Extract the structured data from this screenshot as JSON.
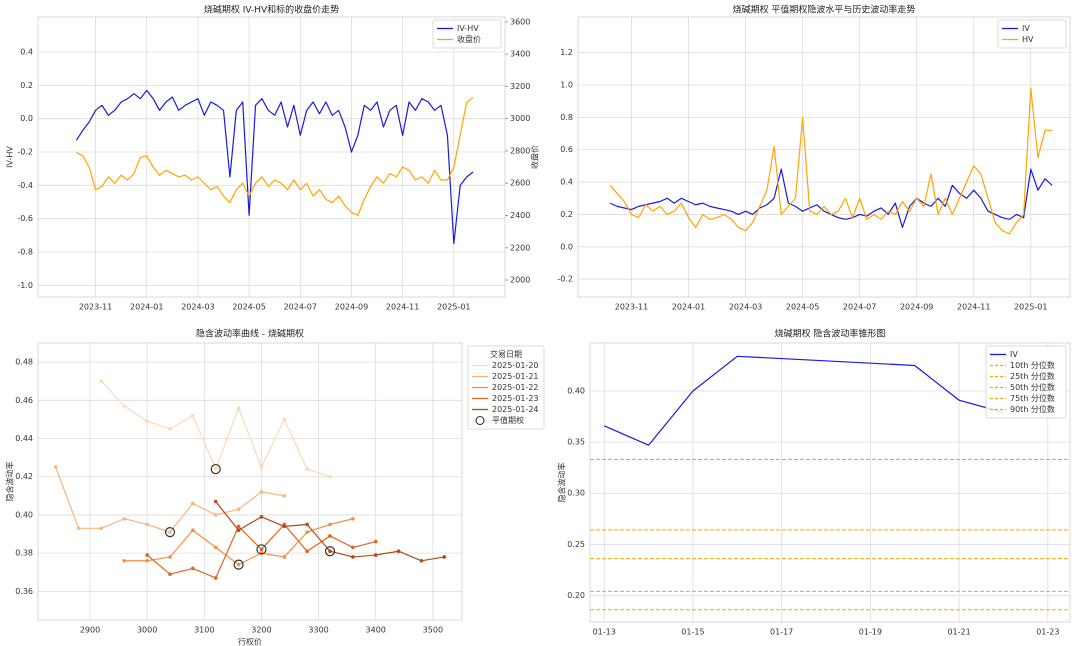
{
  "chart_data": [
    {
      "type": "line",
      "title": "烧碱期权 IV-HV和标的收盘价走势",
      "ylabel": "IV-HV",
      "y2label": "收盘价",
      "ylabel_color": "#1f77b4",
      "y2label_color": "#e41a1c",
      "legend": "upper right",
      "grid": true,
      "categories": [
        null,
        null,
        null,
        "2023-11",
        null,
        null,
        null,
        null,
        null,
        null,
        null,
        "2024-01",
        null,
        null,
        null,
        null,
        null,
        null,
        null,
        "2024-03",
        null,
        null,
        null,
        null,
        null,
        null,
        null,
        "2024-05",
        null,
        null,
        null,
        null,
        null,
        null,
        null,
        "2024-07",
        null,
        null,
        null,
        null,
        null,
        null,
        null,
        "2024-09",
        null,
        null,
        null,
        null,
        null,
        null,
        null,
        "2024-11",
        null,
        null,
        null,
        null,
        null,
        null,
        null,
        "2025-01",
        null,
        null,
        null
      ],
      "ylim": [
        -1.07,
        0.61
      ],
      "yticks": [
        {
          "value": -1.0,
          "label": "-1.0"
        },
        -0.8,
        -0.6,
        -0.4,
        -0.2,
        {
          "value": 0,
          "label": "0.0"
        },
        0.2,
        0.4
      ],
      "y2lim": [
        1895,
        3630
      ],
      "y2ticks": [
        2000,
        2200,
        2400,
        2600,
        2800,
        3000,
        3200,
        3400,
        3600
      ],
      "series": [
        {
          "name": "IV-HV",
          "color": "#1a1adf",
          "values": [
            -0.13,
            -0.07,
            -0.02,
            0.05,
            0.08,
            0.02,
            0.05,
            0.1,
            0.12,
            0.15,
            0.12,
            0.17,
            0.12,
            0.05,
            0.1,
            0.13,
            0.05,
            0.08,
            0.1,
            0.12,
            0.02,
            0.1,
            0.08,
            0.05,
            -0.35,
            0.05,
            0.1,
            -0.58,
            0.08,
            0.12,
            0.05,
            0.02,
            0.1,
            -0.05,
            0.08,
            -0.1,
            0.05,
            0.1,
            0.03,
            0.1,
            0.02,
            0.05,
            -0.05,
            -0.2,
            -0.1,
            0.08,
            0.05,
            0.1,
            -0.05,
            0.05,
            0.08,
            -0.1,
            0.1,
            0.05,
            0.12,
            0.1,
            0.05,
            0.08,
            -0.1,
            -0.75,
            -0.4,
            -0.35,
            -0.32
          ]
        },
        {
          "name": "收盘价",
          "color": "#ffa500",
          "axis": "y2",
          "values": [
            2790,
            2770,
            2700,
            2560,
            2580,
            2640,
            2600,
            2650,
            2620,
            2660,
            2760,
            2770,
            2700,
            2650,
            2680,
            2660,
            2640,
            2650,
            2620,
            2640,
            2600,
            2560,
            2580,
            2520,
            2480,
            2560,
            2600,
            2520,
            2600,
            2640,
            2580,
            2620,
            2600,
            2560,
            2620,
            2560,
            2600,
            2520,
            2560,
            2500,
            2480,
            2520,
            2460,
            2420,
            2400,
            2500,
            2580,
            2640,
            2600,
            2660,
            2640,
            2700,
            2680,
            2620,
            2640,
            2600,
            2680,
            2620,
            2620,
            2700,
            2900,
            3100,
            3130
          ]
        }
      ]
    },
    {
      "type": "line",
      "title": "烧碱期权 平值期权隐波水平与历史波动率走势",
      "legend": "upper right",
      "grid": true,
      "categories": [
        null,
        null,
        null,
        "2023-11",
        null,
        null,
        null,
        null,
        null,
        null,
        null,
        "2024-01",
        null,
        null,
        null,
        null,
        null,
        null,
        null,
        "2024-03",
        null,
        null,
        null,
        null,
        null,
        null,
        null,
        "2024-05",
        null,
        null,
        null,
        null,
        null,
        null,
        null,
        "2024-07",
        null,
        null,
        null,
        null,
        null,
        null,
        null,
        "2024-09",
        null,
        null,
        null,
        null,
        null,
        null,
        null,
        "2024-11",
        null,
        null,
        null,
        null,
        null,
        null,
        null,
        "2025-01",
        null,
        null,
        null
      ],
      "ylim": [
        -0.31,
        1.42
      ],
      "yticks": [
        -0.2,
        {
          "value": 0,
          "label": "0.0"
        },
        0.2,
        0.4,
        0.6,
        0.8,
        {
          "value": 1,
          "label": "1.0"
        },
        1.2
      ],
      "series": [
        {
          "name": "IV",
          "color": "#1a1adf",
          "values": [
            0.27,
            0.25,
            0.24,
            0.23,
            0.25,
            0.26,
            0.27,
            0.28,
            0.3,
            0.27,
            0.3,
            0.28,
            0.26,
            0.27,
            0.25,
            0.24,
            0.23,
            0.22,
            0.2,
            0.22,
            0.2,
            0.24,
            0.26,
            0.3,
            0.48,
            0.27,
            0.25,
            0.22,
            0.24,
            0.26,
            0.22,
            0.2,
            0.18,
            0.17,
            0.18,
            0.2,
            0.19,
            0.22,
            0.24,
            0.2,
            0.27,
            0.12,
            0.25,
            0.3,
            0.27,
            0.25,
            0.3,
            0.25,
            0.38,
            0.33,
            0.3,
            0.35,
            0.3,
            0.22,
            0.2,
            0.18,
            0.17,
            0.2,
            0.18,
            0.48,
            0.35,
            0.42,
            0.38
          ]
        },
        {
          "name": "HV",
          "color": "#ffa500",
          "values": [
            0.38,
            0.33,
            0.28,
            0.2,
            0.18,
            0.26,
            0.22,
            0.25,
            0.2,
            0.22,
            0.27,
            0.18,
            0.12,
            0.2,
            0.17,
            0.18,
            0.2,
            0.17,
            0.12,
            0.1,
            0.15,
            0.25,
            0.35,
            0.62,
            0.2,
            0.25,
            0.3,
            0.8,
            0.22,
            0.2,
            0.25,
            0.2,
            0.22,
            0.3,
            0.18,
            0.3,
            0.17,
            0.2,
            0.17,
            0.22,
            0.2,
            0.28,
            0.22,
            0.3,
            0.25,
            0.45,
            0.2,
            0.3,
            0.2,
            0.3,
            0.4,
            0.5,
            0.45,
            0.3,
            0.15,
            0.1,
            0.08,
            0.15,
            0.2,
            0.98,
            0.55,
            0.72,
            0.72
          ]
        }
      ]
    },
    {
      "type": "line",
      "title": "隐含波动率曲线 - 烧碱期权",
      "xlabel": "行权价",
      "ylabel": "隐含波动率",
      "legend": "outside right",
      "legend_title": "交易日期",
      "grid": true,
      "markers": true,
      "xlim": [
        2809,
        3551
      ],
      "xticks": [
        2900,
        3000,
        3100,
        3200,
        3300,
        3400,
        3500
      ],
      "ylim": [
        0.345,
        0.49
      ],
      "yticks": [
        0.36,
        0.38,
        {
          "value": 0.4,
          "label": "0.40"
        },
        0.42,
        0.44,
        0.46,
        0.48
      ],
      "series": [
        {
          "name": "2025-01-20",
          "color": "#fdd8b6",
          "x": [
            2920,
            2960,
            3000,
            3040,
            3080,
            3120,
            3160,
            3200,
            3240,
            3280,
            3320
          ],
          "values": [
            0.47,
            0.457,
            0.449,
            0.445,
            0.452,
            0.424,
            0.456,
            0.425,
            0.45,
            0.424,
            0.42
          ]
        },
        {
          "name": "2025-01-21",
          "color": "#fbb47a",
          "x": [
            2840,
            2880,
            2920,
            2960,
            3000,
            3040,
            3080,
            3120,
            3160,
            3200,
            3240
          ],
          "values": [
            0.425,
            0.393,
            0.393,
            0.398,
            0.395,
            0.391,
            0.406,
            0.4,
            0.403,
            0.412,
            0.41
          ]
        },
        {
          "name": "2025-01-22",
          "color": "#f78d45",
          "x": [
            2960,
            3000,
            3040,
            3080,
            3120,
            3160,
            3200,
            3240,
            3280,
            3320,
            3360
          ],
          "values": [
            0.376,
            0.376,
            0.378,
            0.392,
            0.383,
            0.374,
            0.38,
            0.378,
            0.391,
            0.395,
            0.398
          ]
        },
        {
          "name": "2025-01-23",
          "color": "#e0651f",
          "x": [
            3000,
            3040,
            3080,
            3120,
            3160,
            3200,
            3240,
            3280,
            3320,
            3360,
            3400
          ],
          "values": [
            0.379,
            0.369,
            0.372,
            0.367,
            0.394,
            0.382,
            0.395,
            0.381,
            0.389,
            0.383,
            0.386
          ]
        },
        {
          "name": "2025-01-24",
          "color": "#b44a17",
          "x": [
            3120,
            3160,
            3200,
            3240,
            3280,
            3320,
            3360,
            3400,
            3440,
            3480,
            3520
          ],
          "values": [
            0.407,
            0.392,
            0.399,
            0.394,
            0.395,
            0.381,
            0.378,
            0.379,
            0.381,
            0.376,
            0.378
          ]
        },
        {
          "name": "平值期权",
          "color": "#333333",
          "style": "open-marker",
          "x": [
            3120,
            3040,
            3160,
            3200,
            3320
          ],
          "values": [
            0.424,
            0.391,
            0.374,
            0.382,
            0.381
          ]
        }
      ]
    },
    {
      "type": "line",
      "title": "烧碱期权 隐含波动率锥形图",
      "ylabel": "隐含波动率",
      "legend": "upper right",
      "grid": true,
      "xlim": [
        "01-13",
        "01-23"
      ],
      "xticks": [
        "01-13",
        "01-15",
        "01-17",
        "01-19",
        "01-21",
        "01-23"
      ],
      "ylim": [
        0.174,
        0.447
      ],
      "yticks": [
        {
          "value": 0.2,
          "label": "0.20"
        },
        0.25,
        {
          "value": 0.3,
          "label": "0.30"
        },
        0.35,
        {
          "value": 0.4,
          "label": "0.40"
        }
      ],
      "series": [
        {
          "name": "IV",
          "color": "#1a1adf",
          "x": [
            "01-13",
            "01-14",
            "01-15",
            "01-16",
            "01-20",
            "01-21",
            "01-22"
          ],
          "values": [
            0.366,
            0.347,
            0.4,
            0.434,
            0.425,
            0.391,
            0.379
          ]
        }
      ],
      "hlines": [
        {
          "name": "10th 分位数",
          "color": "#ffa500",
          "value": 0.186
        },
        {
          "name": "25th 分位数",
          "color": "#ffa500",
          "value": 0.204
        },
        {
          "name": "50th 分位数",
          "color": "#ffa500",
          "value": 0.236
        },
        {
          "name": "75th 分位数",
          "color": "#ffa500",
          "value": 0.264
        },
        {
          "name": "90th 分位数",
          "color": "#ffa500",
          "value": 0.333
        }
      ]
    }
  ]
}
